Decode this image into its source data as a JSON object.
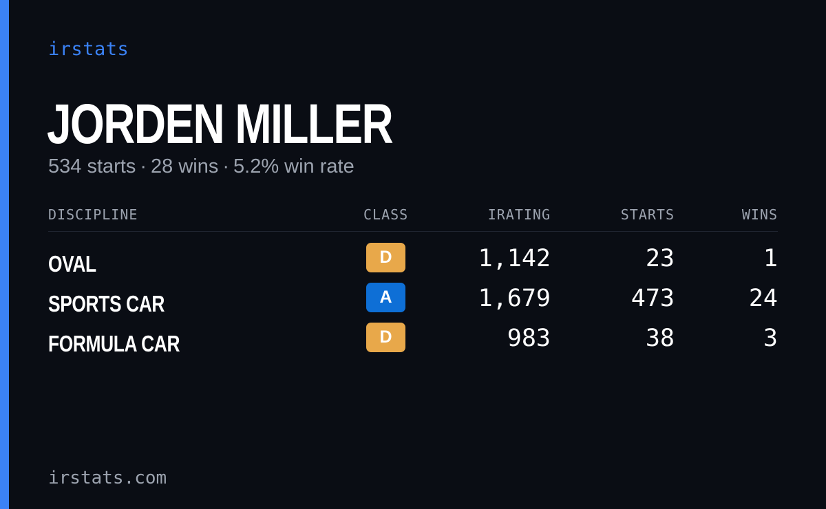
{
  "brand": "irstats",
  "driver": {
    "name": "JORDEN MILLER",
    "starts_text": "534 starts",
    "wins_text": "28 wins",
    "win_rate_text": "5.2% win rate",
    "separator": "·"
  },
  "table": {
    "headers": {
      "discipline": "DISCIPLINE",
      "class": "CLASS",
      "irating": "IRATING",
      "starts": "STARTS",
      "wins": "WINS"
    },
    "rows": [
      {
        "discipline": "OVAL",
        "class": "D",
        "class_color": "#e8a84a",
        "irating": "1,142",
        "starts": "23",
        "wins": "1"
      },
      {
        "discipline": "SPORTS CAR",
        "class": "A",
        "class_color": "#0e6fd6",
        "irating": "1,679",
        "starts": "473",
        "wins": "24"
      },
      {
        "discipline": "FORMULA CAR",
        "class": "D",
        "class_color": "#e8a84a",
        "irating": "983",
        "starts": "38",
        "wins": "3"
      }
    ]
  },
  "footer": "irstats.com",
  "colors": {
    "accent": "#3b82f6",
    "background": "#0a0d14",
    "muted": "#9ca3af"
  }
}
